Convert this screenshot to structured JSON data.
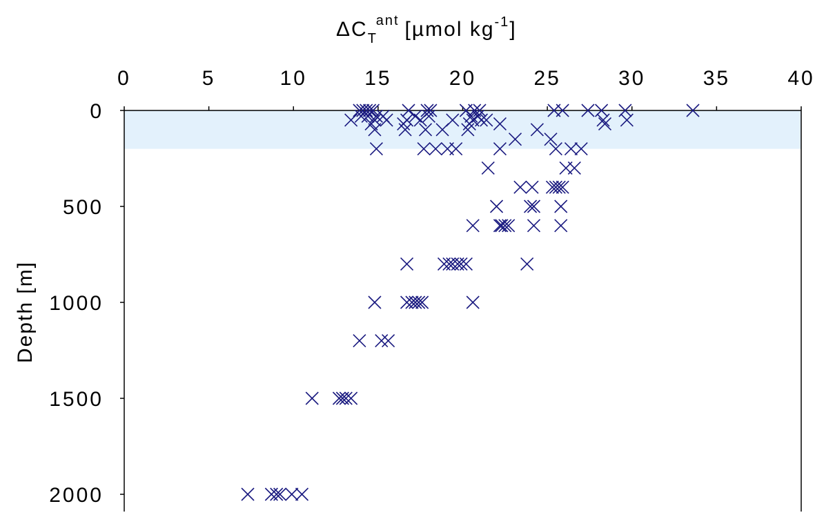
{
  "chart_data": {
    "type": "scatter",
    "title": "",
    "xlabel": "ΔC",
    "xlabel_sub": "T",
    "xlabel_sup": "ant",
    "xlabel_units_prefix": "[µmol kg",
    "xlabel_units_sup": "-1",
    "xlabel_units_suffix": "]",
    "ylabel": "Depth [m]",
    "xlim": [
      0,
      40
    ],
    "ylim": [
      0,
      2000
    ],
    "y_inverted": true,
    "x_axis_position": "top",
    "x_ticks": [
      0,
      5,
      10,
      15,
      20,
      25,
      30,
      35,
      40
    ],
    "y_ticks": [
      0,
      500,
      1000,
      1500,
      2000
    ],
    "x_tick_labels": [
      "0",
      "5",
      "10",
      "15",
      "20",
      "25",
      "30",
      "35",
      "40"
    ],
    "y_tick_labels": [
      "0",
      "500",
      "1000",
      "1500",
      "2000"
    ],
    "grid": false,
    "marker": "x",
    "marker_color": "#1a1a80",
    "band": {
      "y_from": 0,
      "y_to": 200,
      "color": "#e3f1fc"
    },
    "points": [
      [
        13.9,
        0
      ],
      [
        14.1,
        0
      ],
      [
        14.3,
        0
      ],
      [
        14.5,
        0
      ],
      [
        14.7,
        0
      ],
      [
        16.8,
        0
      ],
      [
        17.9,
        0
      ],
      [
        18.1,
        0
      ],
      [
        20.2,
        0
      ],
      [
        20.7,
        0
      ],
      [
        21.0,
        0
      ],
      [
        25.4,
        0
      ],
      [
        25.9,
        0
      ],
      [
        27.4,
        0
      ],
      [
        28.2,
        0
      ],
      [
        29.6,
        0
      ],
      [
        33.6,
        0
      ],
      [
        14.0,
        30
      ],
      [
        14.4,
        30
      ],
      [
        14.9,
        30
      ],
      [
        15.3,
        30
      ],
      [
        17.2,
        30
      ],
      [
        18.0,
        30
      ],
      [
        20.5,
        30
      ],
      [
        20.9,
        30
      ],
      [
        13.4,
        50
      ],
      [
        14.8,
        50
      ],
      [
        15.5,
        50
      ],
      [
        16.7,
        50
      ],
      [
        17.5,
        50
      ],
      [
        19.4,
        50
      ],
      [
        20.6,
        50
      ],
      [
        21.1,
        50
      ],
      [
        21.4,
        50
      ],
      [
        28.3,
        50
      ],
      [
        29.7,
        50
      ],
      [
        14.6,
        70
      ],
      [
        16.5,
        70
      ],
      [
        20.4,
        70
      ],
      [
        22.2,
        70
      ],
      [
        28.4,
        70
      ],
      [
        14.8,
        100
      ],
      [
        16.6,
        100
      ],
      [
        17.8,
        100
      ],
      [
        18.8,
        100
      ],
      [
        20.3,
        100
      ],
      [
        24.4,
        100
      ],
      [
        23.1,
        150
      ],
      [
        25.2,
        150
      ],
      [
        14.9,
        200
      ],
      [
        17.7,
        200
      ],
      [
        18.4,
        200
      ],
      [
        19.1,
        200
      ],
      [
        19.6,
        200
      ],
      [
        22.2,
        200
      ],
      [
        25.5,
        200
      ],
      [
        26.4,
        200
      ],
      [
        27.0,
        200
      ],
      [
        21.5,
        300
      ],
      [
        26.1,
        300
      ],
      [
        26.6,
        300
      ],
      [
        23.4,
        400
      ],
      [
        24.1,
        400
      ],
      [
        25.3,
        400
      ],
      [
        25.5,
        400
      ],
      [
        25.7,
        400
      ],
      [
        25.9,
        400
      ],
      [
        22.0,
        500
      ],
      [
        24.0,
        500
      ],
      [
        24.2,
        500
      ],
      [
        25.8,
        500
      ],
      [
        20.6,
        600
      ],
      [
        22.2,
        600
      ],
      [
        22.3,
        600
      ],
      [
        22.5,
        600
      ],
      [
        22.7,
        600
      ],
      [
        24.2,
        600
      ],
      [
        25.8,
        600
      ],
      [
        16.7,
        800
      ],
      [
        18.9,
        800
      ],
      [
        19.2,
        800
      ],
      [
        19.4,
        800
      ],
      [
        19.7,
        800
      ],
      [
        19.9,
        800
      ],
      [
        20.2,
        800
      ],
      [
        23.8,
        800
      ],
      [
        14.8,
        1000
      ],
      [
        16.7,
        1000
      ],
      [
        17.0,
        1000
      ],
      [
        17.2,
        1000
      ],
      [
        17.4,
        1000
      ],
      [
        17.6,
        1000
      ],
      [
        20.6,
        1000
      ],
      [
        13.9,
        1200
      ],
      [
        15.2,
        1200
      ],
      [
        15.6,
        1200
      ],
      [
        11.1,
        1500
      ],
      [
        12.7,
        1500
      ],
      [
        12.9,
        1500
      ],
      [
        13.1,
        1500
      ],
      [
        13.4,
        1500
      ],
      [
        7.3,
        2000
      ],
      [
        8.7,
        2000
      ],
      [
        9.0,
        2000
      ],
      [
        9.2,
        2000
      ],
      [
        9.9,
        2000
      ],
      [
        10.5,
        2000
      ]
    ]
  }
}
